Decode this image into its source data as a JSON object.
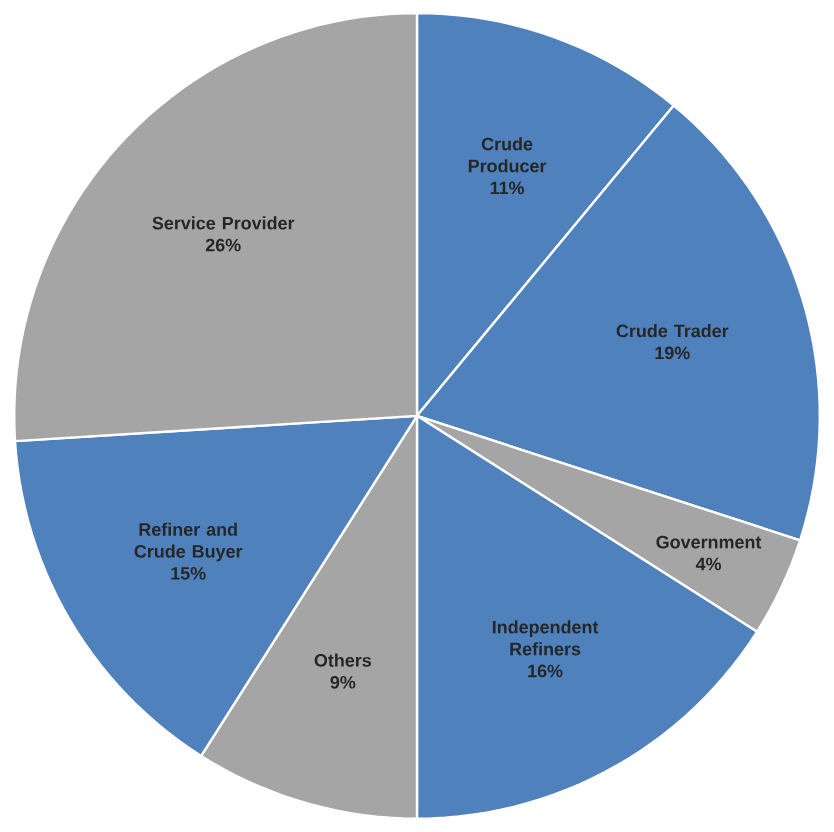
{
  "chart_data": {
    "type": "pie",
    "categories": [
      "Crude Producer",
      "Crude Trader",
      "Government",
      "Independent Refiners",
      "Others",
      "Refiner and Crude Buyer",
      "Service Provider"
    ],
    "values": [
      11,
      19,
      4,
      16,
      9,
      15,
      26
    ],
    "value_labels": [
      "11%",
      "19%",
      "4%",
      "16%",
      "9%",
      "15%",
      "26%"
    ],
    "colors": [
      "#4f81bd",
      "#4f81bd",
      "#a5a5a5",
      "#4f81bd",
      "#a5a5a5",
      "#4f81bd",
      "#a5a5a5"
    ]
  }
}
